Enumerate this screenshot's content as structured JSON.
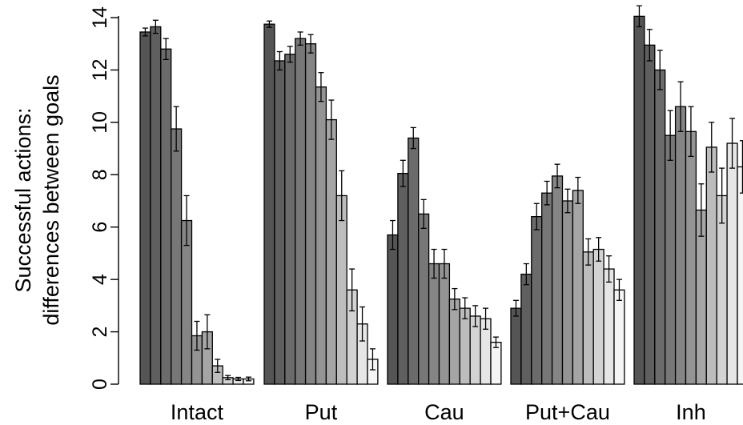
{
  "chart_data": {
    "type": "bar",
    "title": "",
    "ylabel_lines": [
      "Successful actions:",
      "differences between goals"
    ],
    "xlabel": "",
    "ylim": [
      0,
      14
    ],
    "yticks": [
      "0",
      "2",
      "4",
      "6",
      "8",
      "10",
      "12",
      "14"
    ],
    "grid": false,
    "legend": "none",
    "groups": [
      {
        "label": "Intact",
        "values": [
          13.45,
          13.65,
          12.8,
          9.75,
          6.25,
          1.85,
          2.0,
          0.7,
          0.25,
          0.2,
          0.2
        ],
        "errors": [
          0.15,
          0.25,
          0.4,
          0.85,
          0.95,
          0.55,
          0.65,
          0.25,
          0.08,
          0.06,
          0.07
        ]
      },
      {
        "label": "Put",
        "values": [
          13.75,
          12.35,
          12.6,
          13.2,
          13.0,
          11.35,
          10.1,
          7.2,
          3.6,
          2.3,
          0.95
        ],
        "errors": [
          0.12,
          0.35,
          0.3,
          0.25,
          0.35,
          0.55,
          0.75,
          0.95,
          0.8,
          0.65,
          0.4
        ]
      },
      {
        "label": "Cau",
        "values": [
          5.7,
          8.05,
          9.4,
          6.5,
          4.6,
          4.6,
          3.25,
          2.9,
          2.6,
          2.5,
          1.6
        ],
        "errors": [
          0.55,
          0.5,
          0.4,
          0.55,
          0.55,
          0.55,
          0.4,
          0.4,
          0.4,
          0.4,
          0.2
        ]
      },
      {
        "label": "Put+Cau",
        "values": [
          2.9,
          4.2,
          6.4,
          7.3,
          7.95,
          7.0,
          7.4,
          5.05,
          5.15,
          4.4,
          3.6
        ],
        "errors": [
          0.3,
          0.4,
          0.5,
          0.45,
          0.45,
          0.45,
          0.5,
          0.5,
          0.45,
          0.5,
          0.4
        ]
      },
      {
        "label": "Inh",
        "values": [
          14.05,
          12.95,
          12.0,
          9.5,
          10.6,
          9.65,
          6.65,
          9.05,
          7.2,
          9.2,
          8.3
        ],
        "errors": [
          0.4,
          0.6,
          0.75,
          0.95,
          0.95,
          0.95,
          1.0,
          0.95,
          1.05,
          0.95,
          1.0
        ]
      }
    ],
    "bar_fill_colors": [
      "#555555",
      "#5f5f5f",
      "#6b6b6b",
      "#777777",
      "#858585",
      "#949494",
      "#a5a5a5",
      "#bdbdbd",
      "#d3d3d3",
      "#e6e6e6",
      "#f5f5f5"
    ]
  }
}
